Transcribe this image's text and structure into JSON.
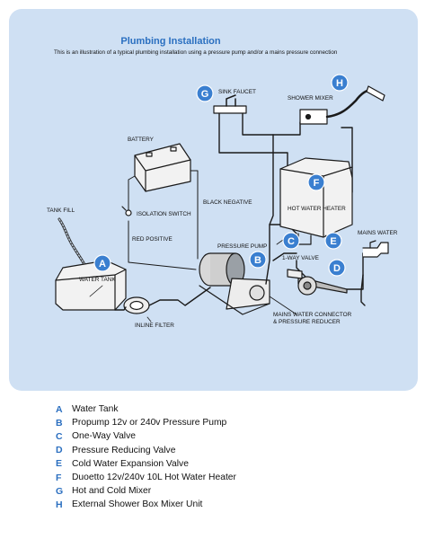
{
  "title": "Plumbing Installation",
  "subtitle": "This is an illustration of a typical plumbing installation using a pressure pump and/or a mains pressure connection",
  "colors": {
    "panel": "#cfe0f3",
    "accent": "#2b6fc0",
    "badge": "#3a7fd0",
    "pipe": "#1a1a1a",
    "appliance": "#f2f2f2"
  },
  "labels": {
    "tank_fill": "TANK FILL",
    "water_tank": "WATER TANK",
    "battery": "BATTERY",
    "isolation_switch": "ISOLATION SWITCH",
    "red_positive": "RED POSITIVE",
    "black_negative": "BLACK NEGATIVE",
    "sink_faucet": "SINK FAUCET",
    "shower_mixer": "SHOWER MIXER",
    "hot_water_heater": "HOT WATER HEATER",
    "pressure_pump": "PRESSURE PUMP",
    "one_way_valve": "1-WAY VALVE",
    "mains_water": "MAINS WATER",
    "inline_filter": "INLINE FILTER",
    "mains_connector_1": "MAINS WATER CONNECTOR",
    "mains_connector_2": "& PRESSURE REDUCER"
  },
  "badges": {
    "a": "A",
    "b": "B",
    "c": "C",
    "d": "D",
    "e": "E",
    "f": "F",
    "g": "G",
    "h": "H"
  },
  "legend": [
    {
      "key": "A",
      "text": "Water Tank"
    },
    {
      "key": "B",
      "text": "Propump 12v or 240v Pressure Pump"
    },
    {
      "key": "C",
      "text": "One-Way Valve"
    },
    {
      "key": "D",
      "text": "Pressure Reducing Valve"
    },
    {
      "key": "E",
      "text": "Cold Water Expansion Valve"
    },
    {
      "key": "F",
      "text": "Duoetto 12v/240v 10L Hot Water Heater"
    },
    {
      "key": "G",
      "text": "Hot and Cold Mixer"
    },
    {
      "key": "H",
      "text": "External Shower Box Mixer Unit"
    }
  ]
}
